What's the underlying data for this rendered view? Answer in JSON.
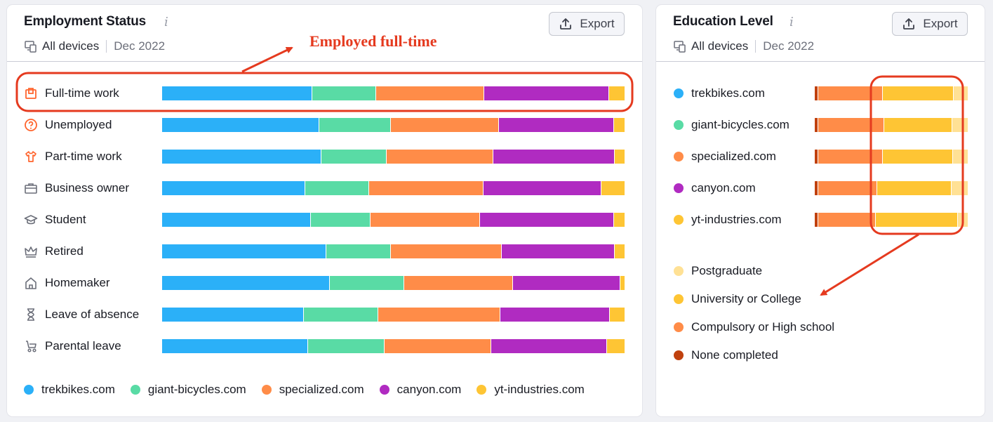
{
  "colors": {
    "trek": "#2bb0f8",
    "giant": "#59dba5",
    "specialized": "#ff8c48",
    "canyon": "#b02bc1",
    "yt": "#fec534",
    "postgraduate": "#ffe195",
    "university": "#fec534",
    "compulsory": "#ff8c48",
    "none": "#c0410e",
    "annotation": "#e53a1f"
  },
  "employment": {
    "title": "Employment Status",
    "info_icon": "info-icon",
    "devices": "All devices",
    "date": "Dec 2022",
    "export_label": "Export",
    "rows": [
      {
        "label": "Full-time work",
        "icon": "briefcase-icon",
        "values": [
          32.5,
          13.8,
          23.4,
          27.0,
          3.3
        ]
      },
      {
        "label": "Unemployed",
        "icon": "question-circle-icon",
        "values": [
          34.0,
          15.5,
          23.3,
          25.0,
          2.2
        ]
      },
      {
        "label": "Part-time work",
        "icon": "shirt-icon",
        "values": [
          34.5,
          14.0,
          23.2,
          26.2,
          2.1
        ]
      },
      {
        "label": "Business owner",
        "icon": "case-icon",
        "values": [
          31.0,
          13.7,
          24.8,
          25.5,
          5.0
        ]
      },
      {
        "label": "Student",
        "icon": "graduation-cap-icon",
        "values": [
          32.2,
          12.9,
          23.6,
          29.0,
          2.3
        ]
      },
      {
        "label": "Retired",
        "icon": "crown-icon",
        "values": [
          35.5,
          14.0,
          23.9,
          24.5,
          2.1
        ]
      },
      {
        "label": "Homemaker",
        "icon": "house-icon",
        "values": [
          36.3,
          16.0,
          23.6,
          23.2,
          0.9
        ]
      },
      {
        "label": "Leave of absence",
        "icon": "hourglass-icon",
        "values": [
          30.7,
          16.1,
          26.3,
          23.7,
          3.2
        ]
      },
      {
        "label": "Parental leave",
        "icon": "stroller-icon",
        "values": [
          31.5,
          16.6,
          23.1,
          25.0,
          3.8
        ]
      }
    ],
    "legend": [
      "trekbikes.com",
      "giant-bicycles.com",
      "specialized.com",
      "canyon.com",
      "yt-industries.com"
    ],
    "annotation": "Employed full-time"
  },
  "education": {
    "title": "Education Level",
    "info_icon": "info-icon",
    "devices": "All devices",
    "date": "Dec 2022",
    "export_label": "Export",
    "rows": [
      {
        "label": "trekbikes.com",
        "values": [
          2.3,
          42.0,
          46.5,
          9.2
        ]
      },
      {
        "label": "giant-bicycles.com",
        "values": [
          2.3,
          43.0,
          44.5,
          10.2
        ]
      },
      {
        "label": "specialized.com",
        "values": [
          2.3,
          42.0,
          46.0,
          9.7
        ]
      },
      {
        "label": "canyon.com",
        "values": [
          2.3,
          38.5,
          48.5,
          10.7
        ]
      },
      {
        "label": "yt-industries.com",
        "values": [
          2.3,
          37.5,
          54.0,
          6.2
        ]
      }
    ],
    "legend": [
      "Postgraduate",
      "University or College",
      "Compulsory or High school",
      "None completed"
    ]
  }
}
